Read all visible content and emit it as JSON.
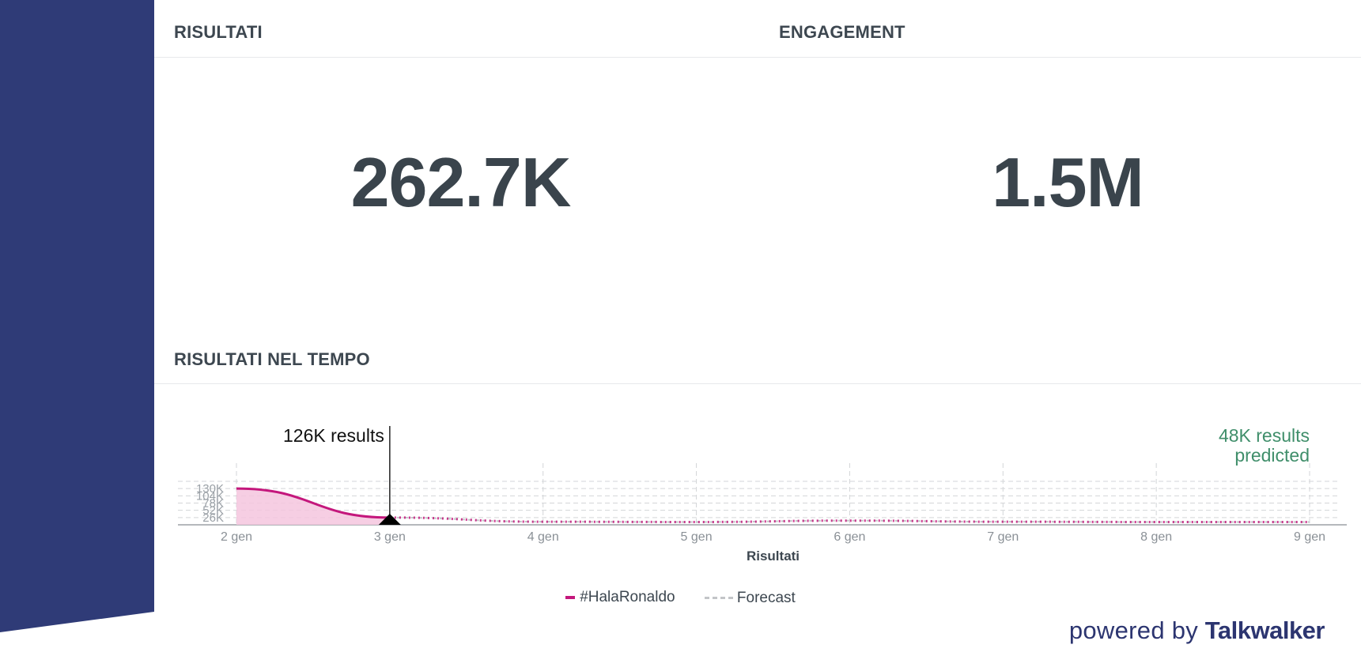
{
  "panels": {
    "results": {
      "title": "RISULTATI",
      "value": "262.7K"
    },
    "engagement": {
      "title": "ENGAGEMENT",
      "value": "1.5M"
    },
    "timeline": {
      "title": "RISULTATI NEL TEMPO"
    }
  },
  "chart_data": {
    "type": "area",
    "title": "RISULTATI NEL TEMPO",
    "xlabel": "Risultati",
    "ylabel": "",
    "x": [
      "2 gen",
      "3 gen",
      "4 gen",
      "5 gen",
      "6 gen",
      "7 gen",
      "8 gen",
      "9 gen"
    ],
    "y_ticks": [
      "26K",
      "52K",
      "78K",
      "104K",
      "130K"
    ],
    "ylim": [
      0,
      156000
    ],
    "grid": true,
    "legend_position": "bottom-center",
    "series": [
      {
        "name": "#HalaRonaldo",
        "color": "#c4177c",
        "x": [
          "2 gen",
          "3 gen"
        ],
        "values": [
          130000,
          26000
        ]
      },
      {
        "name": "Forecast",
        "color": "#c3c5c8",
        "x": [
          "3 gen",
          "4 gen",
          "5 gen",
          "6 gen",
          "7 gen",
          "8 gen",
          "9 gen"
        ],
        "values": [
          26000,
          11000,
          10000,
          15000,
          11000,
          10000,
          10000
        ]
      }
    ],
    "annotations": [
      {
        "x": "3 gen",
        "text": "126K results",
        "color": "#111111"
      },
      {
        "x": "9 gen",
        "text": [
          "48K results",
          "predicted"
        ],
        "color": "#3f8e6a"
      }
    ]
  },
  "legend": {
    "series": "#HalaRonaldo",
    "forecast": "Forecast"
  },
  "colors": {
    "sidebar": "#2f3b77",
    "accent": "#c4177c",
    "area_fill": "#f4c6de",
    "prediction": "#3f8e6a"
  },
  "footer": {
    "powered_by": "powered by",
    "brand": "Talkwalker"
  }
}
